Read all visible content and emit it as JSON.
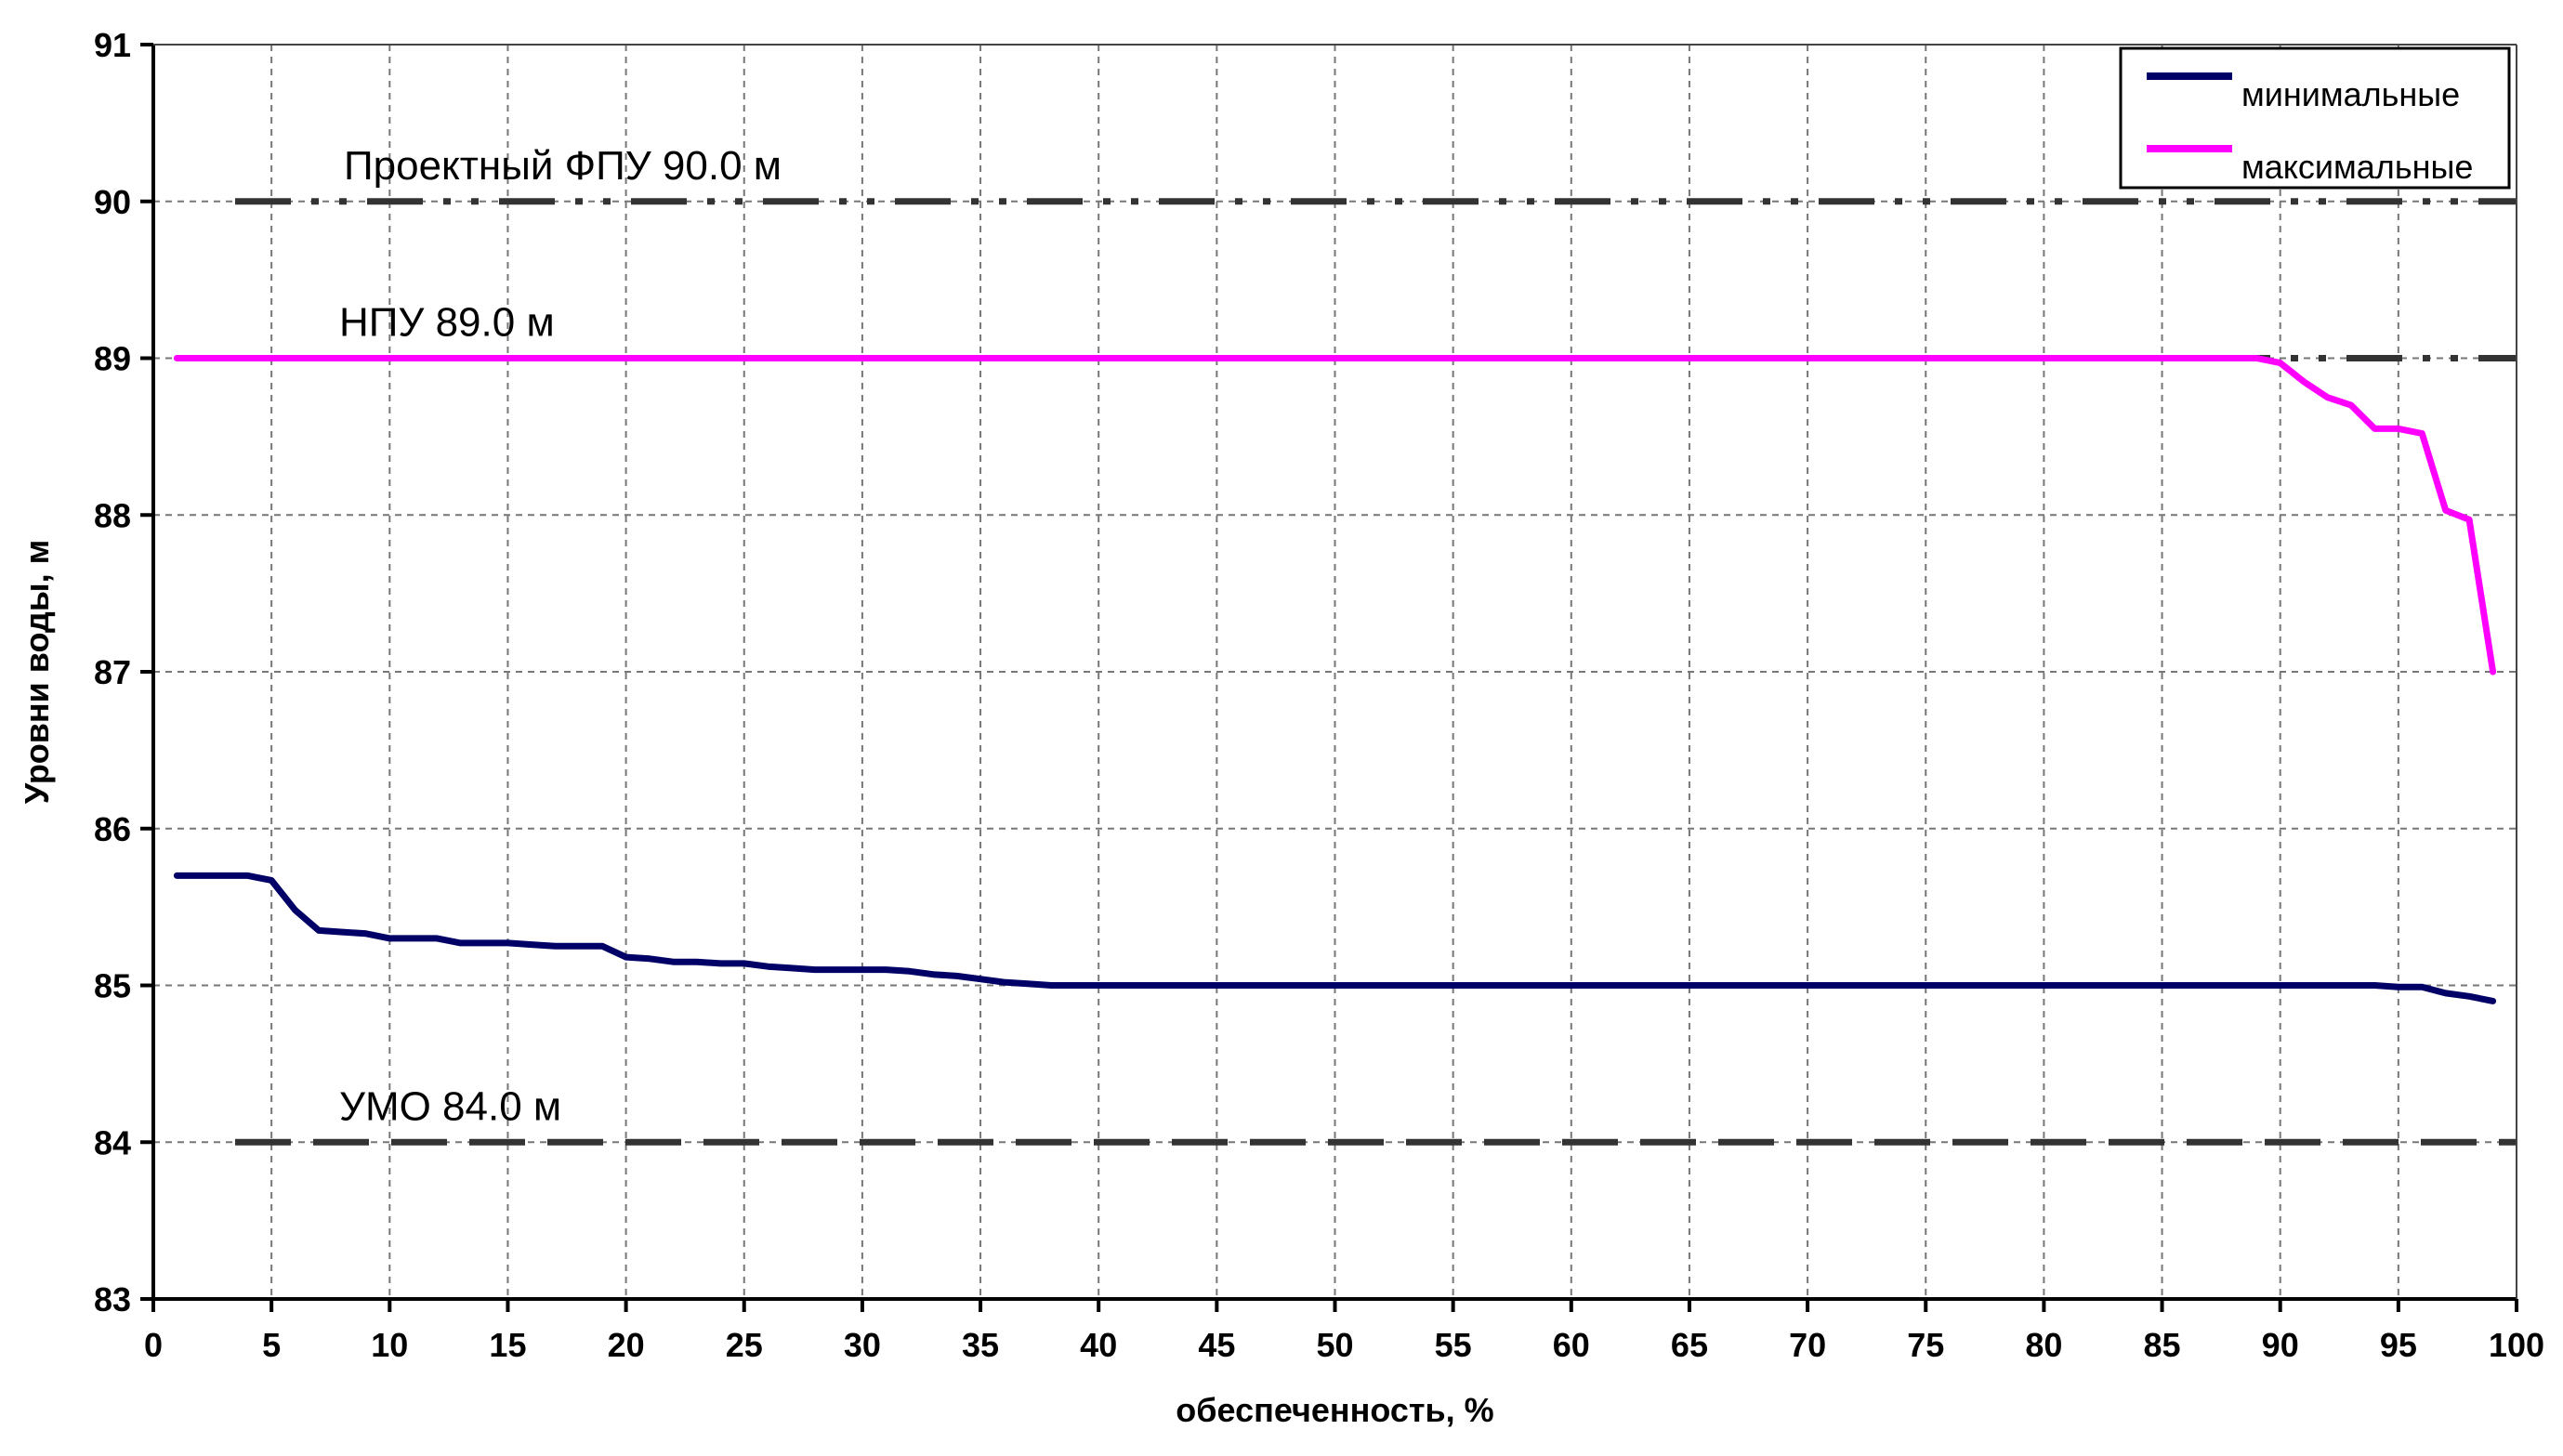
{
  "chart_data": {
    "type": "line",
    "xlabel": "обеспеченность, %",
    "ylabel": "Уровни воды, м",
    "xlim": [
      0,
      100
    ],
    "ylim": [
      83,
      91
    ],
    "xticks": [
      "0",
      "5",
      "10",
      "15",
      "20",
      "25",
      "30",
      "35",
      "40",
      "45",
      "50",
      "55",
      "60",
      "65",
      "70",
      "75",
      "80",
      "85",
      "90",
      "95",
      "100"
    ],
    "yticks": [
      "83",
      "84",
      "85",
      "86",
      "87",
      "88",
      "89",
      "90",
      "91"
    ],
    "grid": true,
    "legend_position": "top-right",
    "series": [
      {
        "name": "минимальные",
        "color": "#000066",
        "points": [
          [
            1,
            85.7
          ],
          [
            2,
            85.7
          ],
          [
            3,
            85.7
          ],
          [
            4,
            85.7
          ],
          [
            5,
            85.67
          ],
          [
            6,
            85.48
          ],
          [
            7,
            85.35
          ],
          [
            8,
            85.34
          ],
          [
            9,
            85.33
          ],
          [
            10,
            85.3
          ],
          [
            11,
            85.3
          ],
          [
            12,
            85.3
          ],
          [
            13,
            85.27
          ],
          [
            14,
            85.27
          ],
          [
            15,
            85.27
          ],
          [
            16,
            85.26
          ],
          [
            17,
            85.25
          ],
          [
            18,
            85.25
          ],
          [
            19,
            85.25
          ],
          [
            20,
            85.18
          ],
          [
            21,
            85.17
          ],
          [
            22,
            85.15
          ],
          [
            23,
            85.15
          ],
          [
            24,
            85.14
          ],
          [
            25,
            85.14
          ],
          [
            26,
            85.12
          ],
          [
            27,
            85.11
          ],
          [
            28,
            85.1
          ],
          [
            29,
            85.1
          ],
          [
            30,
            85.1
          ],
          [
            31,
            85.1
          ],
          [
            32,
            85.09
          ],
          [
            33,
            85.07
          ],
          [
            34,
            85.06
          ],
          [
            35,
            85.04
          ],
          [
            36,
            85.02
          ],
          [
            37,
            85.01
          ],
          [
            38,
            85.0
          ],
          [
            40,
            85.0
          ],
          [
            50,
            85.0
          ],
          [
            60,
            85.0
          ],
          [
            70,
            85.0
          ],
          [
            80,
            85.0
          ],
          [
            90,
            85.0
          ],
          [
            94,
            85.0
          ],
          [
            95,
            84.99
          ],
          [
            96,
            84.99
          ],
          [
            97,
            84.95
          ],
          [
            98,
            84.93
          ],
          [
            99,
            84.9
          ]
        ]
      },
      {
        "name": "максимальные",
        "color": "#ff00ff",
        "points": [
          [
            1,
            89.0
          ],
          [
            10,
            89.0
          ],
          [
            20,
            89.0
          ],
          [
            30,
            89.0
          ],
          [
            40,
            89.0
          ],
          [
            50,
            89.0
          ],
          [
            60,
            89.0
          ],
          [
            70,
            89.0
          ],
          [
            80,
            89.0
          ],
          [
            89,
            89.0
          ],
          [
            90,
            88.97
          ],
          [
            91,
            88.85
          ],
          [
            92,
            88.75
          ],
          [
            93,
            88.7
          ],
          [
            94,
            88.55
          ],
          [
            95,
            88.55
          ],
          [
            96,
            88.52
          ],
          [
            97,
            88.03
          ],
          [
            98,
            87.97
          ],
          [
            99,
            87.0
          ]
        ]
      }
    ],
    "reference_lines": [
      {
        "label": "Проектный ФПУ 90.0 м",
        "y": 90.0,
        "style": "dash-dot-dot",
        "color": "#333333"
      },
      {
        "label": "НПУ 89.0 м",
        "y": 89.0,
        "style": "dash-dot-dot",
        "color": "#333333"
      },
      {
        "label": "УМО 84.0 м",
        "y": 84.0,
        "style": "dash",
        "color": "#333333"
      }
    ]
  }
}
